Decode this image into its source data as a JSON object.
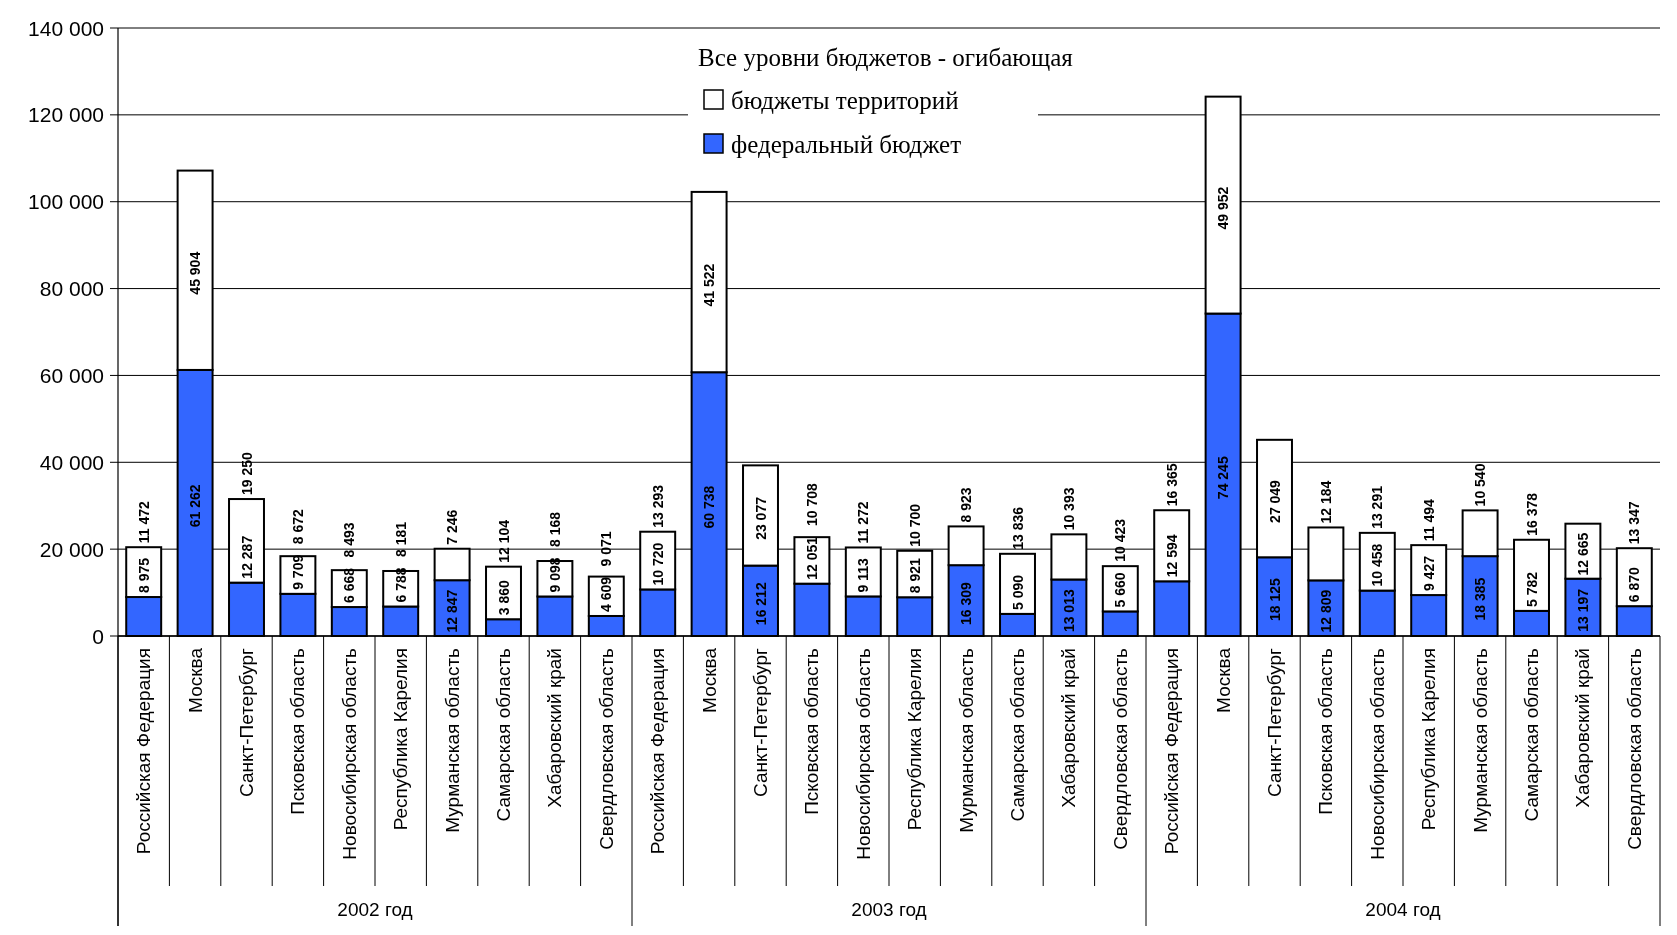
{
  "chart_data": {
    "type": "bar",
    "stacked": true,
    "legend_title": "Все уровни бюджетов - огибающая",
    "legend": "top right",
    "grid": "y",
    "data_labels": true,
    "categories": [
      "Российская Федерация",
      "Москва",
      "Санкт-Петербург",
      "Псковская область",
      "Новосибирская область",
      "Республика Карелия",
      "Мурманская область",
      "Самарская область",
      "Хабаровский край",
      "Свердловская область",
      "Российская Федерация",
      "Москва",
      "Санкт-Петербург",
      "Псковская область",
      "Новосибирская область",
      "Республика Карелия",
      "Мурманская область",
      "Самарская область",
      "Хабаровский край",
      "Свердловская область",
      "Российская Федерация",
      "Москва",
      "Санкт-Петербург",
      "Псковская область",
      "Новосибирская область",
      "Республика Карелия",
      "Мурманская область",
      "Самарская область",
      "Хабаровский край",
      "Свердловская область"
    ],
    "ylim": [
      0,
      140000
    ],
    "yticks": [
      {
        "value": 0,
        "label": "0"
      },
      {
        "value": 20000,
        "label": "20 000"
      },
      {
        "value": 40000,
        "label": "40 000"
      },
      {
        "value": 60000,
        "label": "60 000"
      },
      {
        "value": 80000,
        "label": "80 000"
      },
      {
        "value": 100000,
        "label": "100 000"
      },
      {
        "value": 120000,
        "label": "120 000"
      },
      {
        "value": 140000,
        "label": "140 000"
      }
    ],
    "series": [
      {
        "name": "федеральный бюджет",
        "color": "#3366ff",
        "values": [
          8975,
          61262,
          12287,
          9709,
          6668,
          6788,
          12847,
          3860,
          9098,
          4609,
          10720,
          60738,
          16212,
          12051,
          9113,
          8921,
          16309,
          5090,
          13013,
          5660,
          12594,
          74245,
          18125,
          12809,
          10458,
          9427,
          18385,
          5782,
          13197,
          6870
        ]
      },
      {
        "name": "бюджеты территорий",
        "color": "#ffffff",
        "values": [
          11472,
          45904,
          19250,
          8672,
          8493,
          8181,
          7246,
          12104,
          8168,
          9071,
          13293,
          41522,
          23077,
          10708,
          11272,
          10700,
          8923,
          13836,
          10393,
          10423,
          16365,
          49952,
          27049,
          12184,
          13291,
          11494,
          10540,
          16378,
          12665,
          13347
        ]
      }
    ],
    "annotations": [
      "2002 год",
      "2003 год",
      "2004 год"
    ]
  }
}
